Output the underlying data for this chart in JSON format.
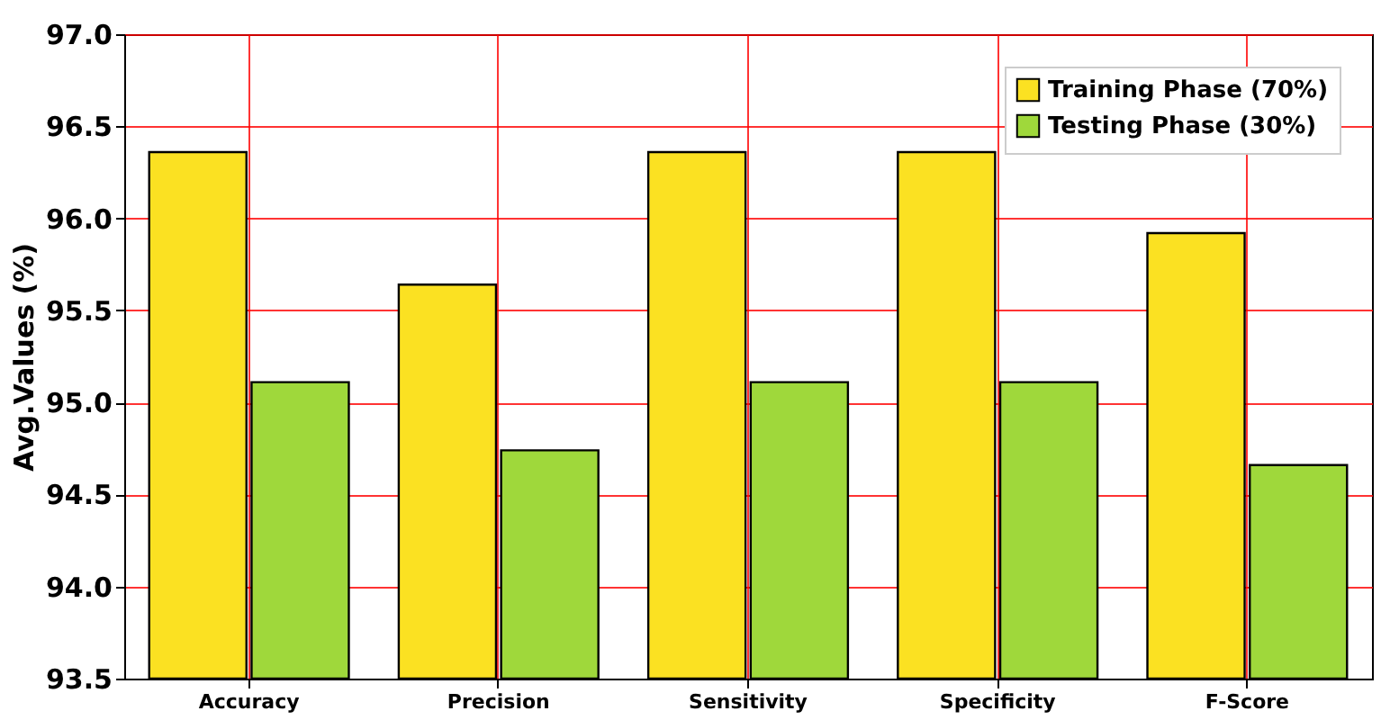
{
  "chart_data": {
    "type": "bar",
    "ylabel": "Avg.Values (%)",
    "categories": [
      "Accuracy",
      "Precision",
      "Sensitivity",
      "Specificity",
      "F-Score"
    ],
    "series": [
      {
        "name": "Training Phase (70%)",
        "color": "#fbe122",
        "values": [
          96.36,
          95.64,
          96.36,
          96.36,
          95.92
        ]
      },
      {
        "name": "Testing Phase (30%)",
        "color": "#9fd83b",
        "values": [
          95.11,
          94.74,
          95.11,
          95.11,
          94.66
        ]
      }
    ],
    "ylim": [
      93.5,
      97.0
    ],
    "yticks": [
      {
        "value": 93.5,
        "label": "93.5"
      },
      {
        "value": 94.0,
        "label": "94.0"
      },
      {
        "value": 94.5,
        "label": "94.5"
      },
      {
        "value": 95.0,
        "label": "95.0"
      },
      {
        "value": 95.5,
        "label": "95.5"
      },
      {
        "value": 96.0,
        "label": "96.0"
      },
      {
        "value": 96.5,
        "label": "96.5"
      },
      {
        "value": 97.0,
        "label": "97.0"
      }
    ],
    "grid": true,
    "legend": "top right"
  }
}
